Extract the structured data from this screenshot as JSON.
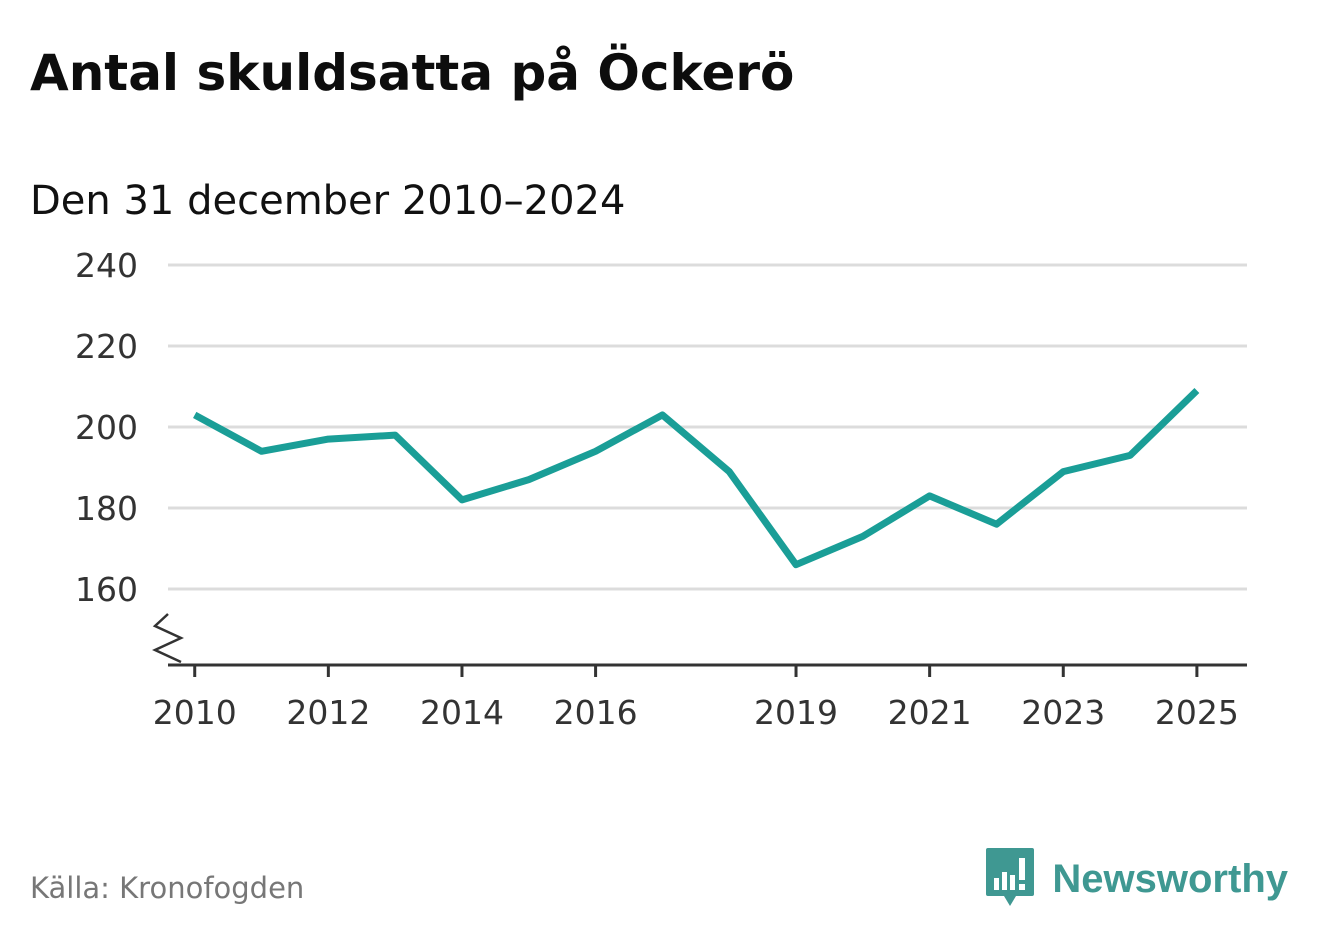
{
  "title": "Antal skuldsatta på Öckerö",
  "subtitle": "Den 31 december 2010–2024",
  "source": "Källa: Kronofogden",
  "brand": {
    "name": "Newsworthy",
    "logo_icon": "bar-chart-speech-bubble-icon",
    "color": "#3f9892"
  },
  "chart_data": {
    "type": "line",
    "title": "Antal skuldsatta på Öckerö",
    "subtitle": "Den 31 december 2010–2024",
    "xlabel": "",
    "ylabel": "",
    "x": [
      2010,
      2011,
      2012,
      2013,
      2014,
      2015,
      2016,
      2017,
      2018,
      2019,
      2020,
      2021,
      2022,
      2023,
      2024,
      2025
    ],
    "series": [
      {
        "name": "Antal skuldsatta",
        "color": "#1a9e97",
        "values": [
          203,
          194,
          197,
          198,
          182,
          187,
          194,
          203,
          189,
          166,
          173,
          183,
          176,
          189,
          193,
          209
        ]
      }
    ],
    "x_ticks": [
      "2010",
      "2012",
      "2014",
      "2016",
      "2019",
      "2021",
      "2023",
      "2025"
    ],
    "y_ticks": [
      "160",
      "180",
      "200",
      "220",
      "240"
    ],
    "xlim": [
      2009.6,
      2025.75
    ],
    "ylim": [
      141,
      240
    ],
    "y_axis_break": true,
    "grid": true,
    "gridline_color": "#dcdcdc"
  }
}
